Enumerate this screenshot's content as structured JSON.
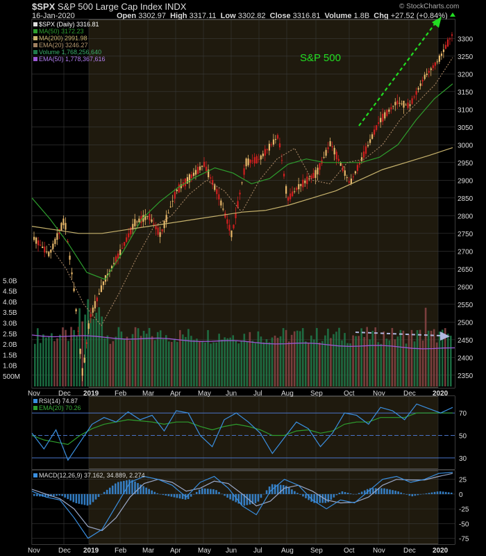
{
  "header": {
    "symbol": "$SPX",
    "name": "S&P 500 Large Cap Index",
    "exchange": "INDX",
    "date": "16-Jan-2020",
    "open_label": "Open",
    "open": "3302.97",
    "high_label": "High",
    "high": "3317.11",
    "low_label": "Low",
    "low": "3302.82",
    "close_label": "Close",
    "close": "3316.81",
    "volume_label": "Volume",
    "volume": "1.8B",
    "chg_label": "Chg",
    "chg": "+27.52 (+0.84%)",
    "watermark": "© StockCharts.com"
  },
  "colors": {
    "background": "#000000",
    "panel_bg": "#1f1a0e",
    "highlight_bg": "#000000",
    "grid": "#3a3a3a",
    "up": "#e8b86a",
    "down": "#d01f1f",
    "ma50": "#2e9e2e",
    "ma200": "#c8b46e",
    "ema20": "#a08060",
    "volume": "#1f7a4a",
    "volume_ema": "#9b59d6",
    "rsi": "#3a8fe0",
    "macd": "#3a8fe0",
    "macd_hist": "#3a8fe0",
    "annotation": "#22dd22",
    "axis_text": "#dddddd"
  },
  "legend": {
    "price": "$SPX (Daily) 3316.81",
    "ma50": "MA(50) 3172.23",
    "ma200": "MA(200) 2991.98",
    "ema20": "EMA(20) 3246.27",
    "volume": "Volume 1,768,256,640",
    "vol_ema": "EMA(50) 1,778,367,616",
    "rsi": "RSI(14) 74.87",
    "rsi_ema": "EMA(20) 70.26",
    "macd": "MACD(12,26,9) 37.162, 34.889, 2.274"
  },
  "annotation_text": "S&P 500",
  "chart_data": [
    {
      "type": "line",
      "title": "$SPX (Daily) 3316.81",
      "x_labels": [
        "Nov",
        "Dec",
        "2019",
        "Feb",
        "Mar",
        "Apr",
        "May",
        "Jun",
        "Jul",
        "Aug",
        "Sep",
        "Oct",
        "Nov",
        "Dec",
        "2020"
      ],
      "y_ticks": [
        2350,
        2400,
        2450,
        2500,
        2550,
        2600,
        2650,
        2700,
        2750,
        2800,
        2850,
        2900,
        2950,
        3000,
        3050,
        3100,
        3150,
        3200,
        3250,
        3300
      ],
      "ylim": [
        2330,
        3330
      ],
      "volume_ticks": [
        "500M",
        "1.0B",
        "1.5B",
        "2.0B",
        "2.5B",
        "3.0B",
        "3.5B",
        "4.0B",
        "4.5B",
        "5.0B"
      ],
      "series": [
        {
          "name": "$SPX (Daily) 3316.81",
          "type": "candlestick",
          "dates": [
            "2018-11",
            "2018-11-15",
            "2018-12-01",
            "2018-12-10",
            "2018-12-24",
            "2019-01-01",
            "2019-01-15",
            "2019-02-01",
            "2019-02-15",
            "2019-03-01",
            "2019-03-08",
            "2019-04-01",
            "2019-04-30",
            "2019-05-15",
            "2019-06-03",
            "2019-06-20",
            "2019-07-01",
            "2019-07-26",
            "2019-08-05",
            "2019-08-15",
            "2019-09-01",
            "2019-09-15",
            "2019-10-02",
            "2019-10-15",
            "2019-11-01",
            "2019-11-15",
            "2019-12-01",
            "2019-12-15",
            "2020-01-01",
            "2020-01-16"
          ],
          "values": [
            2740,
            2690,
            2790,
            2600,
            2351,
            2510,
            2620,
            2700,
            2780,
            2800,
            2745,
            2870,
            2945,
            2860,
            2745,
            2950,
            2960,
            3025,
            2845,
            2880,
            2920,
            3005,
            2890,
            2960,
            3065,
            3120,
            3110,
            3190,
            3240,
            3317
          ]
        },
        {
          "name": "MA(50) 3172.23",
          "values": [
            2850,
            2790,
            2720,
            2640,
            2620,
            2700,
            2790,
            2840,
            2880,
            2910,
            2935,
            2920,
            2890,
            2905,
            2945,
            2960,
            2950,
            2950,
            2950,
            2965,
            3000,
            3070,
            3130,
            3172
          ]
        },
        {
          "name": "MA(200) 2991.98",
          "values": [
            2770,
            2760,
            2750,
            2750,
            2760,
            2770,
            2780,
            2790,
            2800,
            2810,
            2815,
            2830,
            2850,
            2870,
            2900,
            2930,
            2950,
            2970,
            2992
          ]
        },
        {
          "name": "EMA(20) 3246.27",
          "values": [
            2720,
            2650,
            2550,
            2490,
            2580,
            2680,
            2770,
            2800,
            2860,
            2900,
            2870,
            2810,
            2900,
            2960,
            2990,
            2900,
            2890,
            2950,
            2960,
            3000,
            3070,
            3120,
            3170,
            3246
          ]
        }
      ]
    },
    {
      "type": "line",
      "title": "RSI(14) 74.87",
      "y_ticks": [
        30,
        50,
        70
      ],
      "ylim": [
        20,
        85
      ],
      "series": [
        {
          "name": "RSI(14) 74.87",
          "values": [
            52,
            38,
            55,
            28,
            44,
            60,
            66,
            62,
            71,
            64,
            68,
            54,
            72,
            70,
            50,
            40,
            64,
            70,
            62,
            52,
            34,
            48,
            62,
            56,
            40,
            52,
            70,
            68,
            60,
            75,
            72,
            64,
            78,
            74,
            70,
            75
          ]
        },
        {
          "name": "EMA(20) 70.26",
          "values": [
            50,
            46,
            44,
            42,
            50,
            56,
            60,
            62,
            64,
            63,
            62,
            60,
            62,
            62,
            58,
            55,
            58,
            60,
            58,
            55,
            50,
            50,
            54,
            55,
            52,
            54,
            60,
            62,
            62,
            66,
            66,
            66,
            70,
            70,
            70,
            70
          ]
        }
      ]
    },
    {
      "type": "line",
      "title": "MACD(12,26,9) 37.162, 34.889, 2.274",
      "y_ticks": [
        -75,
        -50,
        -25,
        0,
        25
      ],
      "ylim": [
        -85,
        40
      ],
      "series": [
        {
          "name": "MACD",
          "values": [
            5,
            -5,
            -10,
            -40,
            -75,
            -60,
            -20,
            20,
            30,
            25,
            15,
            -5,
            20,
            30,
            10,
            -20,
            -35,
            5,
            25,
            15,
            -10,
            -25,
            -10,
            -15,
            5,
            25,
            30,
            20,
            25,
            35,
            37
          ]
        },
        {
          "name": "Signal",
          "values": [
            8,
            0,
            -8,
            -25,
            -55,
            -62,
            -40,
            -5,
            18,
            25,
            20,
            5,
            10,
            22,
            18,
            0,
            -20,
            -12,
            10,
            15,
            5,
            -10,
            -15,
            -14,
            -5,
            15,
            25,
            24,
            24,
            30,
            35
          ]
        },
        {
          "name": "Histogram",
          "values": [
            -3,
            -5,
            -2,
            -15,
            -20,
            2,
            20,
            25,
            12,
            0,
            -5,
            -10,
            10,
            8,
            -8,
            -20,
            -15,
            17,
            15,
            0,
            -15,
            -15,
            5,
            -1,
            10,
            10,
            5,
            -4,
            1,
            5,
            2
          ]
        }
      ]
    }
  ]
}
